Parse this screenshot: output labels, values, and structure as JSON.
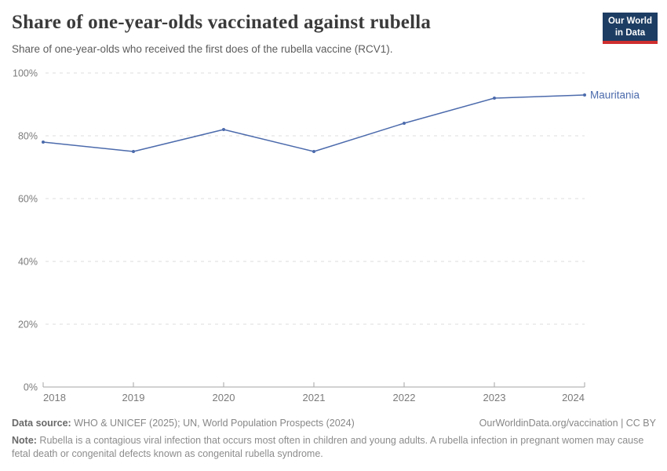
{
  "logo": {
    "line1": "Our World",
    "line2": "in Data"
  },
  "chart_data": {
    "type": "line",
    "title": "Share of one-year-olds vaccinated against rubella",
    "subtitle": "Share of one-year-olds who received the first does of the rubella vaccine (RCV1).",
    "x": [
      2018,
      2019,
      2020,
      2021,
      2022,
      2023,
      2024
    ],
    "series": [
      {
        "name": "Mauritania",
        "color": "#4c6bac",
        "values": [
          78,
          75,
          82,
          75,
          84,
          92,
          93
        ]
      }
    ],
    "unit": "%",
    "ylim": [
      0,
      100
    ],
    "yticks": [
      0,
      20,
      40,
      60,
      80,
      100
    ],
    "grid": "horizontal-dashed",
    "legend": "series-label-at-line-end"
  },
  "footer": {
    "datasource_label": "Data source:",
    "datasource_text": " WHO & UNICEF (2025); UN, World Population Prospects (2024)",
    "attribution": "OurWorldinData.org/vaccination | CC BY",
    "note_label": "Note:",
    "note_text": " Rubella is a contagious viral infection that occurs most often in children and young adults. A rubella infection in pregnant women may cause fetal death or congenital defects known as congenital rubella syndrome."
  },
  "colors": {
    "line_blue": "#4c6bac",
    "logo_navy": "#1d3d63",
    "logo_red": "#cf2f2f",
    "grid": "#dcdcdc",
    "axis": "#a6a6a6",
    "tick_label": "#7b7b7b"
  }
}
